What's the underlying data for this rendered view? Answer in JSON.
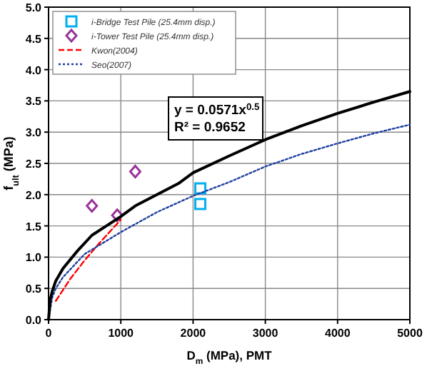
{
  "chart_data": {
    "type": "scatter",
    "xlabel": "D$_{m}$ (MPa), PMT",
    "ylabel": "f$_{ult}$ (MPa)",
    "xlim": [
      0,
      5000
    ],
    "ylim": [
      0,
      5
    ],
    "xticks": [
      0,
      1000,
      2000,
      3000,
      4000,
      5000
    ],
    "yticks": [
      {
        "value": 0,
        "label": "0.0"
      },
      {
        "value": 0.5,
        "label": "0.5"
      },
      {
        "value": 1,
        "label": "1.0"
      },
      {
        "value": 1.5,
        "label": "1.5"
      },
      {
        "value": 2,
        "label": "2.0"
      },
      {
        "value": 2.5,
        "label": "2.5"
      },
      {
        "value": 3,
        "label": "3.0"
      },
      {
        "value": 3.5,
        "label": "3.5"
      },
      {
        "value": 4,
        "label": "4.0"
      },
      {
        "value": 4.5,
        "label": "4.5"
      },
      {
        "value": 5,
        "label": "5.0"
      }
    ],
    "grid": true,
    "legend": "top left",
    "annotations": [
      "y = 0.0571x$^{0.5}$",
      "R² = 0.9652"
    ],
    "series": [
      {
        "name": "i-Bridge Test Pile (25.4mm disp.)",
        "marker": "square",
        "color": "#00b0f0",
        "x": [
          2100,
          2100
        ],
        "values": [
          2.1,
          1.85
        ]
      },
      {
        "name": "i-Tower Test Pile (25.4mm disp.)",
        "marker": "diamond",
        "color": "#993399",
        "x": [
          600,
          950,
          1200
        ],
        "values": [
          1.82,
          1.67,
          2.37
        ]
      },
      {
        "name": "Kwon(2004)",
        "type": "line",
        "line_style": "dashed",
        "color": "#ff0000",
        "x": [
          100,
          300,
          500,
          700,
          1000
        ],
        "values": [
          0.3,
          0.65,
          0.95,
          1.22,
          1.6
        ]
      },
      {
        "name": "Seo(2007)",
        "type": "line",
        "line_style": "dotted",
        "color": "#1f3f9f",
        "x": [
          0,
          50,
          100,
          200,
          500,
          1000,
          1500,
          2000,
          2500,
          3000,
          3500,
          4000,
          4500,
          5000
        ],
        "values": [
          0,
          0.35,
          0.5,
          0.68,
          1.05,
          1.4,
          1.72,
          1.98,
          2.2,
          2.45,
          2.65,
          2.82,
          2.98,
          3.12
        ]
      },
      {
        "type": "line",
        "line_style": "solid",
        "color": "#000000",
        "x": [
          0,
          20,
          50,
          100,
          200,
          400,
          600,
          800,
          1000,
          1200,
          1500,
          1800,
          2000,
          2500,
          3000,
          3500,
          4000,
          4500,
          5000
        ],
        "values": [
          0,
          0.3,
          0.45,
          0.62,
          0.82,
          1.1,
          1.35,
          1.5,
          1.65,
          1.82,
          2.0,
          2.18,
          2.35,
          2.62,
          2.88,
          3.1,
          3.3,
          3.48,
          3.65
        ]
      }
    ]
  }
}
